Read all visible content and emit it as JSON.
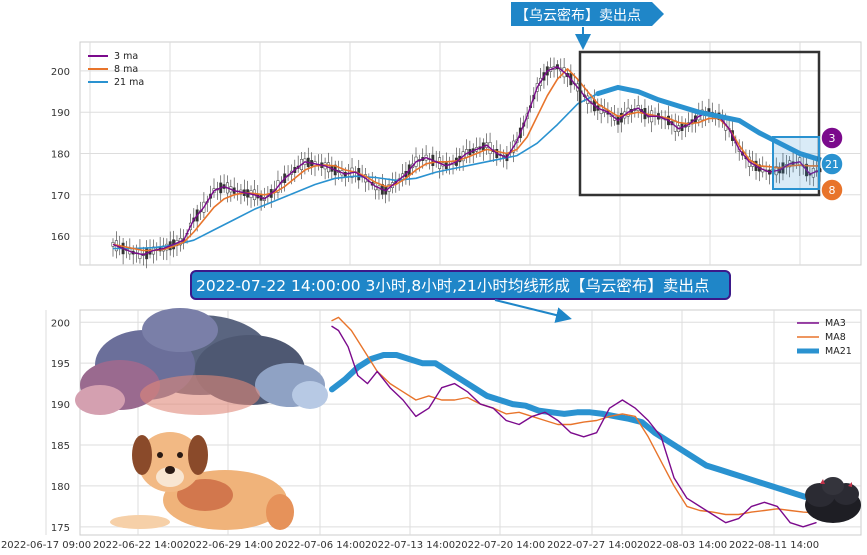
{
  "chart_data": [
    {
      "type": "line",
      "panel": "top",
      "yticks": [
        160,
        170,
        180,
        190,
        200
      ],
      "ylim": [
        153,
        207
      ],
      "legend_position": "top-left",
      "grid": true,
      "series": [
        {
          "name": "3 ma",
          "color": "#7b0a8c"
        },
        {
          "name": "8 ma",
          "color": "#e8742b"
        },
        {
          "name": "21 ma",
          "color": "#2a92d0"
        }
      ],
      "candles_described": "hourly candlesticks from 2022-06-17 to 2022-08-15",
      "ma3": [
        [
          0,
          158
        ],
        [
          3,
          157
        ],
        [
          6,
          156
        ],
        [
          9,
          155.5
        ],
        [
          12,
          156.5
        ],
        [
          15,
          157
        ],
        [
          18,
          158
        ],
        [
          21,
          159
        ],
        [
          24,
          164
        ],
        [
          27,
          167
        ],
        [
          30,
          171
        ],
        [
          33,
          172
        ],
        [
          36,
          171
        ],
        [
          39,
          170.5
        ],
        [
          42,
          170
        ],
        [
          45,
          169
        ],
        [
          48,
          171
        ],
        [
          51,
          174
        ],
        [
          54,
          176
        ],
        [
          57,
          178
        ],
        [
          60,
          177.5
        ],
        [
          63,
          177
        ],
        [
          66,
          176
        ],
        [
          69,
          175
        ],
        [
          72,
          175.5
        ],
        [
          75,
          174
        ],
        [
          78,
          172
        ],
        [
          81,
          171
        ],
        [
          84,
          173
        ],
        [
          87,
          175
        ],
        [
          90,
          178
        ],
        [
          93,
          179
        ],
        [
          96,
          178
        ],
        [
          99,
          177
        ],
        [
          102,
          178
        ],
        [
          105,
          180
        ],
        [
          108,
          181
        ],
        [
          111,
          182
        ],
        [
          114,
          180
        ],
        [
          117,
          179
        ],
        [
          120,
          183
        ],
        [
          123,
          189
        ],
        [
          126,
          196
        ],
        [
          129,
          200
        ],
        [
          132,
          201
        ],
        [
          135,
          199
        ],
        [
          138,
          196
        ],
        [
          141,
          193
        ],
        [
          144,
          191
        ],
        [
          147,
          190
        ],
        [
          150,
          188
        ],
        [
          153,
          190
        ],
        [
          156,
          191
        ],
        [
          159,
          189
        ],
        [
          162,
          189
        ],
        [
          165,
          188
        ],
        [
          168,
          186
        ],
        [
          171,
          187
        ],
        [
          174,
          189
        ],
        [
          177,
          190
        ],
        [
          180,
          189
        ],
        [
          183,
          186
        ],
        [
          186,
          181
        ],
        [
          189,
          178
        ],
        [
          192,
          176.5
        ],
        [
          195,
          175.5
        ],
        [
          198,
          176
        ],
        [
          201,
          177.5
        ],
        [
          204,
          178
        ],
        [
          207,
          175
        ],
        [
          210,
          176
        ]
      ],
      "ma8": [
        [
          0,
          158
        ],
        [
          3,
          157.5
        ],
        [
          6,
          157
        ],
        [
          9,
          156.5
        ],
        [
          12,
          156.5
        ],
        [
          15,
          156.8
        ],
        [
          18,
          157.5
        ],
        [
          21,
          158.5
        ],
        [
          24,
          161
        ],
        [
          27,
          164
        ],
        [
          30,
          167
        ],
        [
          33,
          169
        ],
        [
          36,
          170
        ],
        [
          39,
          170.5
        ],
        [
          42,
          170.3
        ],
        [
          45,
          170
        ],
        [
          48,
          170.5
        ],
        [
          51,
          172
        ],
        [
          54,
          174
        ],
        [
          57,
          176
        ],
        [
          60,
          177
        ],
        [
          63,
          177.2
        ],
        [
          66,
          177
        ],
        [
          69,
          176
        ],
        [
          72,
          175.5
        ],
        [
          75,
          174.5
        ],
        [
          78,
          173
        ],
        [
          81,
          172
        ],
        [
          84,
          172.5
        ],
        [
          87,
          174
        ],
        [
          90,
          176
        ],
        [
          93,
          177.5
        ],
        [
          96,
          178
        ],
        [
          99,
          178
        ],
        [
          102,
          178.2
        ],
        [
          105,
          179
        ],
        [
          108,
          180
        ],
        [
          111,
          181
        ],
        [
          114,
          180.5
        ],
        [
          117,
          180
        ],
        [
          120,
          181
        ],
        [
          123,
          184
        ],
        [
          126,
          189
        ],
        [
          129,
          194
        ],
        [
          132,
          198
        ],
        [
          135,
          200.5
        ],
        [
          138,
          198
        ],
        [
          141,
          195
        ],
        [
          144,
          192
        ],
        [
          147,
          190.5
        ],
        [
          150,
          189
        ],
        [
          153,
          189.5
        ],
        [
          156,
          190
        ],
        [
          159,
          189.5
        ],
        [
          162,
          189
        ],
        [
          165,
          188.5
        ],
        [
          168,
          187.5
        ],
        [
          171,
          187.2
        ],
        [
          174,
          187.5
        ],
        [
          177,
          188.5
        ],
        [
          180,
          188.5
        ],
        [
          183,
          186
        ],
        [
          186,
          182
        ],
        [
          189,
          178.5
        ],
        [
          192,
          177
        ],
        [
          195,
          176.8
        ],
        [
          198,
          176.5
        ],
        [
          201,
          177
        ],
        [
          204,
          177.2
        ],
        [
          207,
          177
        ],
        [
          210,
          177
        ]
      ],
      "ma21": [
        [
          0,
          157
        ],
        [
          6,
          157
        ],
        [
          12,
          157.2
        ],
        [
          18,
          157.8
        ],
        [
          24,
          159
        ],
        [
          30,
          161.5
        ],
        [
          36,
          164
        ],
        [
          42,
          166.5
        ],
        [
          48,
          168.5
        ],
        [
          54,
          170.5
        ],
        [
          60,
          172.5
        ],
        [
          66,
          174
        ],
        [
          72,
          174.5
        ],
        [
          78,
          174.2
        ],
        [
          84,
          173.5
        ],
        [
          90,
          174
        ],
        [
          96,
          175.5
        ],
        [
          102,
          176.5
        ],
        [
          108,
          177.5
        ],
        [
          114,
          178.5
        ],
        [
          120,
          179.5
        ],
        [
          126,
          182.5
        ],
        [
          132,
          187
        ],
        [
          138,
          192
        ],
        [
          144,
          194.5
        ],
        [
          150,
          196
        ],
        [
          156,
          195
        ],
        [
          162,
          193
        ],
        [
          168,
          191.5
        ],
        [
          174,
          190
        ],
        [
          180,
          189
        ],
        [
          186,
          188
        ],
        [
          192,
          185
        ],
        [
          198,
          182.5
        ],
        [
          204,
          180
        ],
        [
          210,
          178.5
        ]
      ]
    },
    {
      "type": "line",
      "panel": "bottom",
      "yticks": [
        175,
        180,
        185,
        190,
        195,
        200
      ],
      "ylim": [
        174,
        201.5
      ],
      "legend_position": "top-right",
      "grid": true,
      "series": [
        {
          "name": "MA3",
          "color": "#7b0a8c"
        },
        {
          "name": "MA8",
          "color": "#e8742b"
        },
        {
          "name": "MA21",
          "color": "#2a92d0"
        }
      ],
      "x_ticks": [
        "2022-06-17 09:00",
        "2022-06-22 14:00",
        "2022-06-29 14:00",
        "2022-07-06 14:00",
        "2022-07-13 14:00",
        "2022-07-20 14:00",
        "2022-07-27 14:00",
        "2022-08-03 14:00",
        "2022-08-11 14:00"
      ],
      "ma3": [
        [
          0,
          199.5
        ],
        [
          2,
          199
        ],
        [
          5,
          197
        ],
        [
          8,
          193.5
        ],
        [
          11,
          192.5
        ],
        [
          14,
          194
        ],
        [
          18,
          192
        ],
        [
          22,
          190.5
        ],
        [
          26,
          188.5
        ],
        [
          30,
          189.5
        ],
        [
          34,
          192
        ],
        [
          38,
          192.5
        ],
        [
          42,
          191.5
        ],
        [
          46,
          190
        ],
        [
          50,
          189.5
        ],
        [
          54,
          188
        ],
        [
          58,
          187.5
        ],
        [
          62,
          188.5
        ],
        [
          66,
          189
        ],
        [
          70,
          188
        ],
        [
          74,
          186.5
        ],
        [
          78,
          186
        ],
        [
          82,
          186.5
        ],
        [
          86,
          189.5
        ],
        [
          90,
          190.5
        ],
        [
          94,
          189.5
        ],
        [
          98,
          188
        ],
        [
          102,
          186
        ],
        [
          106,
          181
        ],
        [
          110,
          178.5
        ],
        [
          114,
          177.5
        ],
        [
          118,
          176.5
        ],
        [
          122,
          175.5
        ],
        [
          126,
          176
        ],
        [
          130,
          177.5
        ],
        [
          134,
          178
        ],
        [
          138,
          177.5
        ],
        [
          142,
          175.5
        ],
        [
          146,
          175
        ],
        [
          150,
          175.5
        ]
      ],
      "ma8": [
        [
          0,
          200.2
        ],
        [
          2,
          200.6
        ],
        [
          6,
          199
        ],
        [
          10,
          196.5
        ],
        [
          14,
          194
        ],
        [
          18,
          192.5
        ],
        [
          22,
          191.5
        ],
        [
          26,
          190.5
        ],
        [
          30,
          191
        ],
        [
          34,
          190.5
        ],
        [
          38,
          190.5
        ],
        [
          42,
          190.8
        ],
        [
          46,
          190
        ],
        [
          50,
          189.5
        ],
        [
          54,
          188.8
        ],
        [
          58,
          189
        ],
        [
          62,
          188.5
        ],
        [
          66,
          188
        ],
        [
          70,
          187.5
        ],
        [
          74,
          187.5
        ],
        [
          78,
          187.8
        ],
        [
          82,
          188
        ],
        [
          86,
          188.5
        ],
        [
          90,
          188.8
        ],
        [
          94,
          188.5
        ],
        [
          98,
          186
        ],
        [
          102,
          183
        ],
        [
          106,
          180
        ],
        [
          110,
          177.5
        ],
        [
          114,
          177
        ],
        [
          118,
          176.8
        ],
        [
          122,
          176.5
        ],
        [
          126,
          176.5
        ],
        [
          130,
          176.8
        ],
        [
          134,
          177
        ],
        [
          138,
          177.2
        ],
        [
          142,
          177
        ],
        [
          146,
          176.8
        ],
        [
          150,
          176.7
        ]
      ],
      "ma21": [
        [
          0,
          191.8
        ],
        [
          4,
          193
        ],
        [
          8,
          194.5
        ],
        [
          12,
          195.5
        ],
        [
          16,
          196
        ],
        [
          20,
          196
        ],
        [
          24,
          195.5
        ],
        [
          28,
          195
        ],
        [
          32,
          195
        ],
        [
          36,
          194
        ],
        [
          40,
          193
        ],
        [
          44,
          192
        ],
        [
          48,
          191
        ],
        [
          52,
          190.5
        ],
        [
          56,
          190
        ],
        [
          60,
          189.8
        ],
        [
          64,
          189.2
        ],
        [
          68,
          189
        ],
        [
          72,
          188.8
        ],
        [
          76,
          189
        ],
        [
          80,
          189
        ],
        [
          84,
          188.8
        ],
        [
          88,
          188.5
        ],
        [
          92,
          188.2
        ],
        [
          96,
          187.8
        ],
        [
          100,
          186.5
        ],
        [
          104,
          185.5
        ],
        [
          108,
          184.5
        ],
        [
          112,
          183.5
        ],
        [
          116,
          182.5
        ],
        [
          120,
          182
        ],
        [
          124,
          181.5
        ],
        [
          128,
          181
        ],
        [
          132,
          180.5
        ],
        [
          136,
          180
        ],
        [
          140,
          179.5
        ],
        [
          144,
          179
        ],
        [
          148,
          178.5
        ],
        [
          150,
          178.2
        ]
      ]
    }
  ],
  "annotations": {
    "top_label": "【乌云密布】卖出点",
    "banner": "2022-07-22 14:00:00 3小时,8小时,21小时均线形成【乌云密布】卖出点",
    "badges": [
      "3",
      "21",
      "8"
    ]
  },
  "colors": {
    "ma3": "#7b0a8c",
    "ma8": "#e8742b",
    "ma21": "#2a92d0",
    "label_bg": "#1f86c8",
    "banner_bg": "#1f86c8"
  },
  "icons": [
    "storm-cloud-icon",
    "dog-icon",
    "dark-cloud-icon"
  ]
}
